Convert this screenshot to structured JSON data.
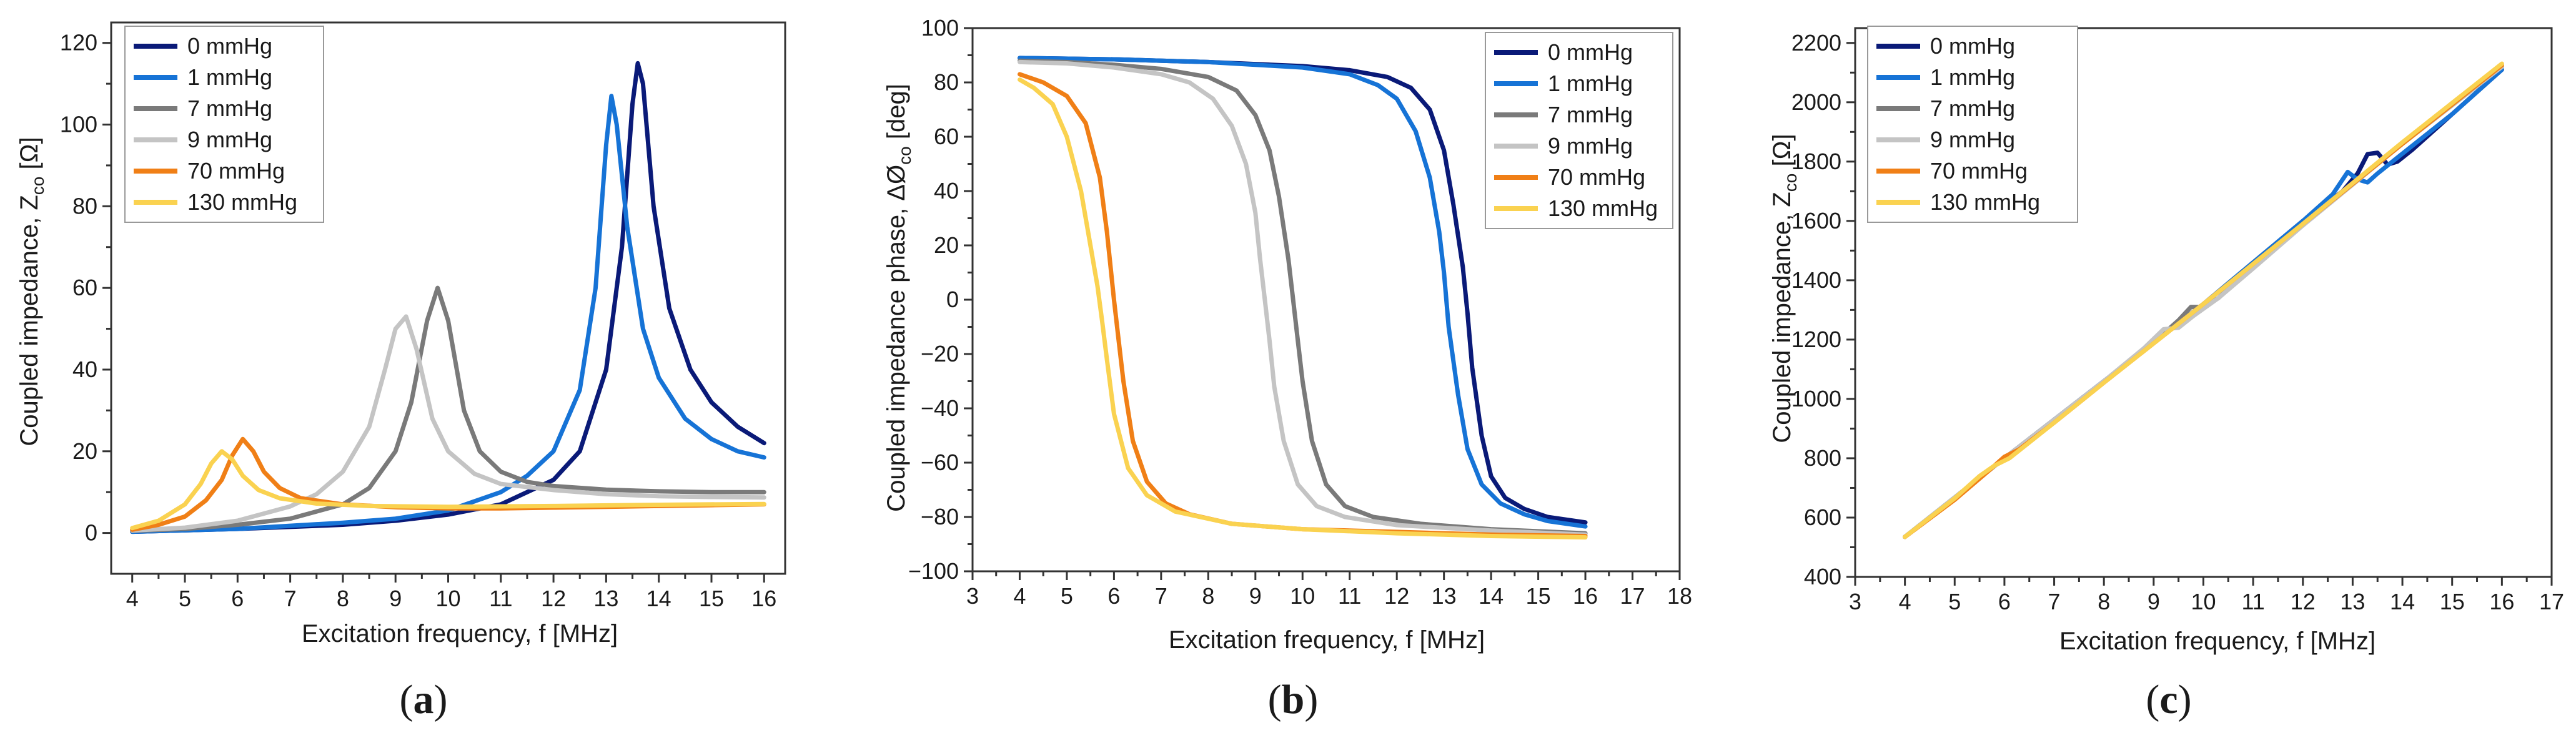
{
  "series_colors": [
    "#0a1a78",
    "#1673d6",
    "#7a7a7a",
    "#c4c4c4",
    "#f07f16",
    "#fad250"
  ],
  "chart_data": [
    {
      "type": "line",
      "panel_label": "(a)",
      "panel_letter": "a",
      "xlabel": "Excitation frequency, f [MHz]",
      "ylabel": "Coupled impedance, Z",
      "ylabel_sub": "co",
      "ylabel_unit": " [Ω]",
      "xlim": [
        3.6,
        16.4
      ],
      "ylim": [
        -10,
        125
      ],
      "xticks": [
        4,
        5,
        6,
        7,
        8,
        9,
        10,
        11,
        12,
        13,
        14,
        15,
        16
      ],
      "yticks": [
        0,
        20,
        40,
        60,
        80,
        100,
        120
      ],
      "legend_position": "top-left",
      "series": [
        {
          "name": "0 mmHg",
          "x": [
            4,
            6,
            8,
            9,
            10,
            11,
            12,
            12.5,
            13,
            13.3,
            13.5,
            13.6,
            13.7,
            13.9,
            14.2,
            14.6,
            15,
            15.5,
            16
          ],
          "y": [
            0.3,
            1.0,
            2.0,
            3.0,
            4.5,
            7.0,
            13,
            20,
            40,
            70,
            105,
            115,
            110,
            80,
            55,
            40,
            32,
            26,
            22
          ]
        },
        {
          "name": "1 mmHg",
          "x": [
            4,
            6,
            8,
            9,
            10,
            11,
            11.5,
            12,
            12.5,
            12.8,
            13.0,
            13.1,
            13.2,
            13.4,
            13.7,
            14,
            14.5,
            15,
            15.5,
            16
          ],
          "y": [
            0.3,
            1.0,
            2.5,
            3.5,
            5.5,
            10,
            14,
            20,
            35,
            60,
            95,
            107,
            100,
            75,
            50,
            38,
            28,
            23,
            20,
            18.5
          ]
        },
        {
          "name": "7 mmHg",
          "x": [
            4,
            5,
            6,
            7,
            8,
            8.5,
            9,
            9.3,
            9.6,
            9.8,
            10.0,
            10.3,
            10.6,
            11,
            11.5,
            12,
            13,
            14,
            15,
            16
          ],
          "y": [
            0.5,
            1.0,
            2.0,
            3.5,
            7,
            11,
            20,
            32,
            52,
            60,
            52,
            30,
            20,
            15,
            12.5,
            11.5,
            10.6,
            10.2,
            10,
            10
          ]
        },
        {
          "name": "9 mmHg",
          "x": [
            4,
            5,
            6,
            7,
            7.5,
            8,
            8.5,
            8.8,
            9.0,
            9.2,
            9.4,
            9.7,
            10,
            10.5,
            11,
            12,
            13,
            14,
            15,
            16
          ],
          "y": [
            0.6,
            1.3,
            3.0,
            6.5,
            9.5,
            15,
            26,
            40,
            50,
            53,
            45,
            28,
            20,
            14.5,
            12,
            10.5,
            9.5,
            9.0,
            8.8,
            8.7
          ]
        },
        {
          "name": "70 mmHg",
          "x": [
            4,
            4.5,
            5,
            5.4,
            5.7,
            5.9,
            6.1,
            6.3,
            6.5,
            6.8,
            7.2,
            8,
            9,
            10,
            11,
            12,
            13,
            14,
            15,
            16
          ],
          "y": [
            0.8,
            2.0,
            4.0,
            8,
            13,
            19,
            23,
            20,
            15,
            11,
            8.5,
            7.0,
            6.3,
            6.0,
            6.0,
            6.2,
            6.4,
            6.6,
            6.8,
            7.0
          ]
        },
        {
          "name": "130 mmHg",
          "x": [
            4,
            4.5,
            5,
            5.3,
            5.5,
            5.7,
            5.9,
            6.1,
            6.4,
            6.8,
            7.5,
            8.5,
            10,
            12,
            14,
            16
          ],
          "y": [
            1.2,
            3.0,
            7.0,
            12,
            17,
            20,
            18,
            14,
            10.5,
            8.5,
            7.2,
            6.6,
            6.4,
            6.6,
            6.9,
            7.1
          ]
        }
      ]
    },
    {
      "type": "line",
      "panel_label": "(b)",
      "panel_letter": "b",
      "xlabel": "Excitation frequency, f [MHz]",
      "ylabel": "Coupled impedance phase, ΔØ",
      "ylabel_sub": "co",
      "ylabel_unit": " [deg]",
      "xlim": [
        3,
        18
      ],
      "ylim": [
        -100,
        100
      ],
      "xticks": [
        3,
        4,
        5,
        6,
        7,
        8,
        9,
        10,
        11,
        12,
        13,
        14,
        15,
        16,
        17,
        18
      ],
      "yticks": [
        -100,
        -80,
        -60,
        -40,
        -20,
        0,
        20,
        40,
        60,
        80,
        100
      ],
      "legend_position": "top-right",
      "series": [
        {
          "name": "0 mmHg",
          "x": [
            4,
            6,
            8,
            10,
            11,
            11.8,
            12.3,
            12.7,
            13.0,
            13.2,
            13.4,
            13.5,
            13.6,
            13.8,
            14.0,
            14.3,
            14.7,
            15.2,
            16
          ],
          "y": [
            89,
            88.5,
            87.5,
            86,
            84.5,
            82,
            78,
            70,
            55,
            35,
            12,
            -5,
            -25,
            -50,
            -65,
            -73,
            -77,
            -80,
            -82
          ]
        },
        {
          "name": "1 mmHg",
          "x": [
            4,
            6,
            8,
            10,
            11,
            11.6,
            12.0,
            12.4,
            12.7,
            12.9,
            13.0,
            13.1,
            13.3,
            13.5,
            13.8,
            14.2,
            14.7,
            15.2,
            16
          ],
          "y": [
            89,
            88.5,
            87.5,
            85.5,
            83,
            79,
            74,
            62,
            45,
            25,
            10,
            -10,
            -35,
            -55,
            -68,
            -75,
            -79,
            -81.5,
            -83.5
          ]
        },
        {
          "name": "7 mmHg",
          "x": [
            4,
            5,
            6,
            7,
            8,
            8.6,
            9.0,
            9.3,
            9.5,
            9.7,
            9.8,
            9.9,
            10.0,
            10.2,
            10.5,
            10.9,
            11.5,
            12.5,
            14,
            16
          ],
          "y": [
            88,
            87.5,
            86.5,
            85,
            82,
            77,
            68,
            55,
            38,
            15,
            0,
            -15,
            -30,
            -52,
            -68,
            -76,
            -80,
            -82.5,
            -84.5,
            -86
          ]
        },
        {
          "name": "9 mmHg",
          "x": [
            4,
            5,
            6,
            7,
            7.6,
            8.1,
            8.5,
            8.8,
            9.0,
            9.1,
            9.2,
            9.3,
            9.4,
            9.6,
            9.9,
            10.3,
            10.9,
            12,
            14,
            16
          ],
          "y": [
            87.5,
            87,
            85.5,
            83,
            80,
            74,
            64,
            50,
            32,
            15,
            0,
            -15,
            -32,
            -52,
            -68,
            -76,
            -80,
            -83,
            -85,
            -86.5
          ]
        },
        {
          "name": "70 mmHg",
          "x": [
            4,
            4.5,
            5.0,
            5.4,
            5.7,
            5.85,
            6.0,
            6.1,
            6.2,
            6.4,
            6.7,
            7.1,
            7.6,
            8.5,
            10,
            12,
            14,
            16
          ],
          "y": [
            83,
            80,
            75,
            65,
            45,
            25,
            0,
            -15,
            -30,
            -52,
            -67,
            -75,
            -79,
            -82.5,
            -84.5,
            -85.5,
            -86.5,
            -87
          ]
        },
        {
          "name": "130 mmHg",
          "x": [
            4,
            4.3,
            4.7,
            5.0,
            5.3,
            5.5,
            5.65,
            5.75,
            5.85,
            6.0,
            6.3,
            6.7,
            7.3,
            8.5,
            10,
            12,
            14,
            16
          ],
          "y": [
            81,
            78,
            72,
            60,
            40,
            20,
            5,
            -8,
            -22,
            -42,
            -62,
            -72,
            -78,
            -82.5,
            -84.5,
            -86,
            -87,
            -87.5
          ]
        }
      ]
    },
    {
      "type": "line",
      "panel_label": "(c)",
      "panel_letter": "c",
      "xlabel": "Excitation frequency, f [MHz]",
      "ylabel": "Coupled impedance, Z",
      "ylabel_sub": "co",
      "ylabel_unit": " [Ω]",
      "xlim": [
        3,
        17
      ],
      "ylim": [
        400,
        2250
      ],
      "xticks": [
        3,
        4,
        5,
        6,
        7,
        8,
        9,
        10,
        11,
        12,
        13,
        14,
        15,
        16,
        17
      ],
      "yticks": [
        400,
        600,
        800,
        1000,
        1200,
        1400,
        1600,
        1800,
        2000,
        2200
      ],
      "legend_position": "top-left",
      "series": [
        {
          "name": "0 mmHg",
          "x": [
            4,
            6,
            8,
            10,
            12,
            12.8,
            13.1,
            13.3,
            13.5,
            13.7,
            13.9,
            14.2,
            15,
            16
          ],
          "y": [
            535,
            800,
            1060,
            1320,
            1600,
            1700,
            1760,
            1825,
            1830,
            1790,
            1800,
            1840,
            1960,
            2110
          ]
        },
        {
          "name": "1 mmHg",
          "x": [
            4,
            6,
            8,
            10,
            12,
            12.6,
            12.9,
            13.1,
            13.3,
            13.5,
            13.8,
            15,
            16
          ],
          "y": [
            535,
            800,
            1060,
            1320,
            1600,
            1690,
            1765,
            1740,
            1730,
            1760,
            1800,
            1960,
            2110
          ]
        },
        {
          "name": "7 mmHg",
          "x": [
            4,
            6,
            8,
            9,
            9.5,
            9.75,
            10.0,
            10.3,
            11,
            12,
            14,
            16
          ],
          "y": [
            535,
            800,
            1060,
            1190,
            1265,
            1310,
            1310,
            1340,
            1450,
            1590,
            1860,
            2120
          ]
        },
        {
          "name": "9 mmHg",
          "x": [
            4,
            6,
            8,
            8.8,
            9.2,
            9.5,
            9.8,
            10.3,
            11,
            12,
            14,
            16
          ],
          "y": [
            535,
            800,
            1060,
            1170,
            1235,
            1240,
            1280,
            1340,
            1440,
            1585,
            1860,
            2120
          ]
        },
        {
          "name": "70 mmHg",
          "x": [
            4,
            5,
            5.7,
            6.0,
            6.3,
            7,
            8,
            10,
            12,
            14,
            16
          ],
          "y": [
            535,
            660,
            760,
            805,
            830,
            920,
            1055,
            1320,
            1590,
            1860,
            2125
          ]
        },
        {
          "name": "130 mmHg",
          "x": [
            4,
            5,
            5.5,
            5.8,
            6.1,
            7,
            8,
            10,
            12,
            14,
            16
          ],
          "y": [
            535,
            665,
            740,
            775,
            800,
            920,
            1055,
            1320,
            1590,
            1865,
            2130
          ]
        }
      ]
    }
  ]
}
